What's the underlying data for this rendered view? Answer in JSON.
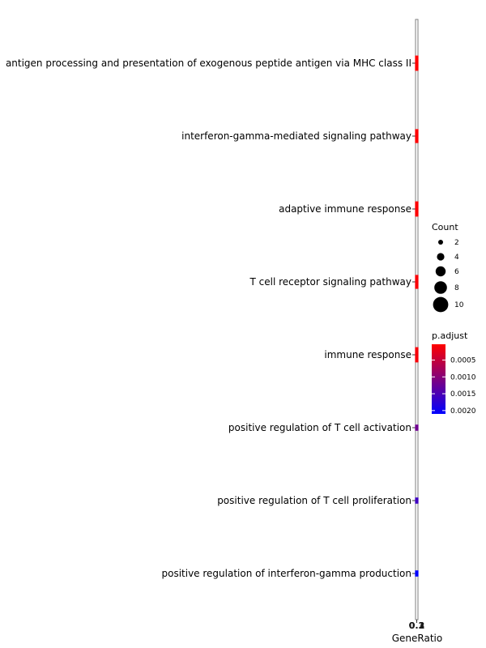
{
  "chart_data": {
    "type": "scatter",
    "xlabel": "GeneRatio",
    "x_tick_labels": [
      "0.1",
      "0.2",
      "0.3"
    ],
    "categories": [
      "antigen processing and presentation of exogenous peptide antigen via MHC class II",
      "interferon-gamma-mediated signaling pathway",
      "adaptive immune response",
      "T cell receptor signaling pathway",
      "immune response",
      "positive regulation of T cell activation",
      "positive regulation of T cell proliferation",
      "positive regulation of interferon-gamma production"
    ],
    "points": [
      {
        "term": "antigen processing and presentation of exogenous peptide antigen via MHC class II",
        "gene_ratio": 0.2,
        "count": 10,
        "p_adjust": 3e-05
      },
      {
        "term": "interferon-gamma-mediated signaling pathway",
        "gene_ratio": 0.2,
        "count": 9,
        "p_adjust": 5e-05
      },
      {
        "term": "adaptive immune response",
        "gene_ratio": 0.2,
        "count": 10,
        "p_adjust": 5e-05
      },
      {
        "term": "T cell receptor signaling pathway",
        "gene_ratio": 0.2,
        "count": 9,
        "p_adjust": 8e-05
      },
      {
        "term": "immune response",
        "gene_ratio": 0.2,
        "count": 10,
        "p_adjust": 0.0001
      },
      {
        "term": "positive regulation of T cell activation",
        "gene_ratio": 0.2,
        "count": 3,
        "p_adjust": 0.0012
      },
      {
        "term": "positive regulation of T cell proliferation",
        "gene_ratio": 0.2,
        "count": 3,
        "p_adjust": 0.0016
      },
      {
        "term": "positive regulation of interferon-gamma production",
        "gene_ratio": 0.2,
        "count": 3,
        "p_adjust": 0.0021
      }
    ],
    "legend_size": {
      "title": "Count",
      "values": [
        2,
        4,
        6,
        8,
        10
      ],
      "labels": [
        "2",
        "4",
        "6",
        "8",
        "10"
      ]
    },
    "legend_color": {
      "title": "p.adjust",
      "tick_values": [
        0.0005,
        0.001,
        0.0015,
        0.002
      ],
      "tick_labels": [
        "0.0005",
        "0.0010",
        "0.0015",
        "0.0020"
      ],
      "range": [
        3e-05,
        0.0021
      ],
      "low_color": "#ff0000",
      "high_color": "#0000ff"
    },
    "grid": false,
    "legend_position": "right"
  }
}
